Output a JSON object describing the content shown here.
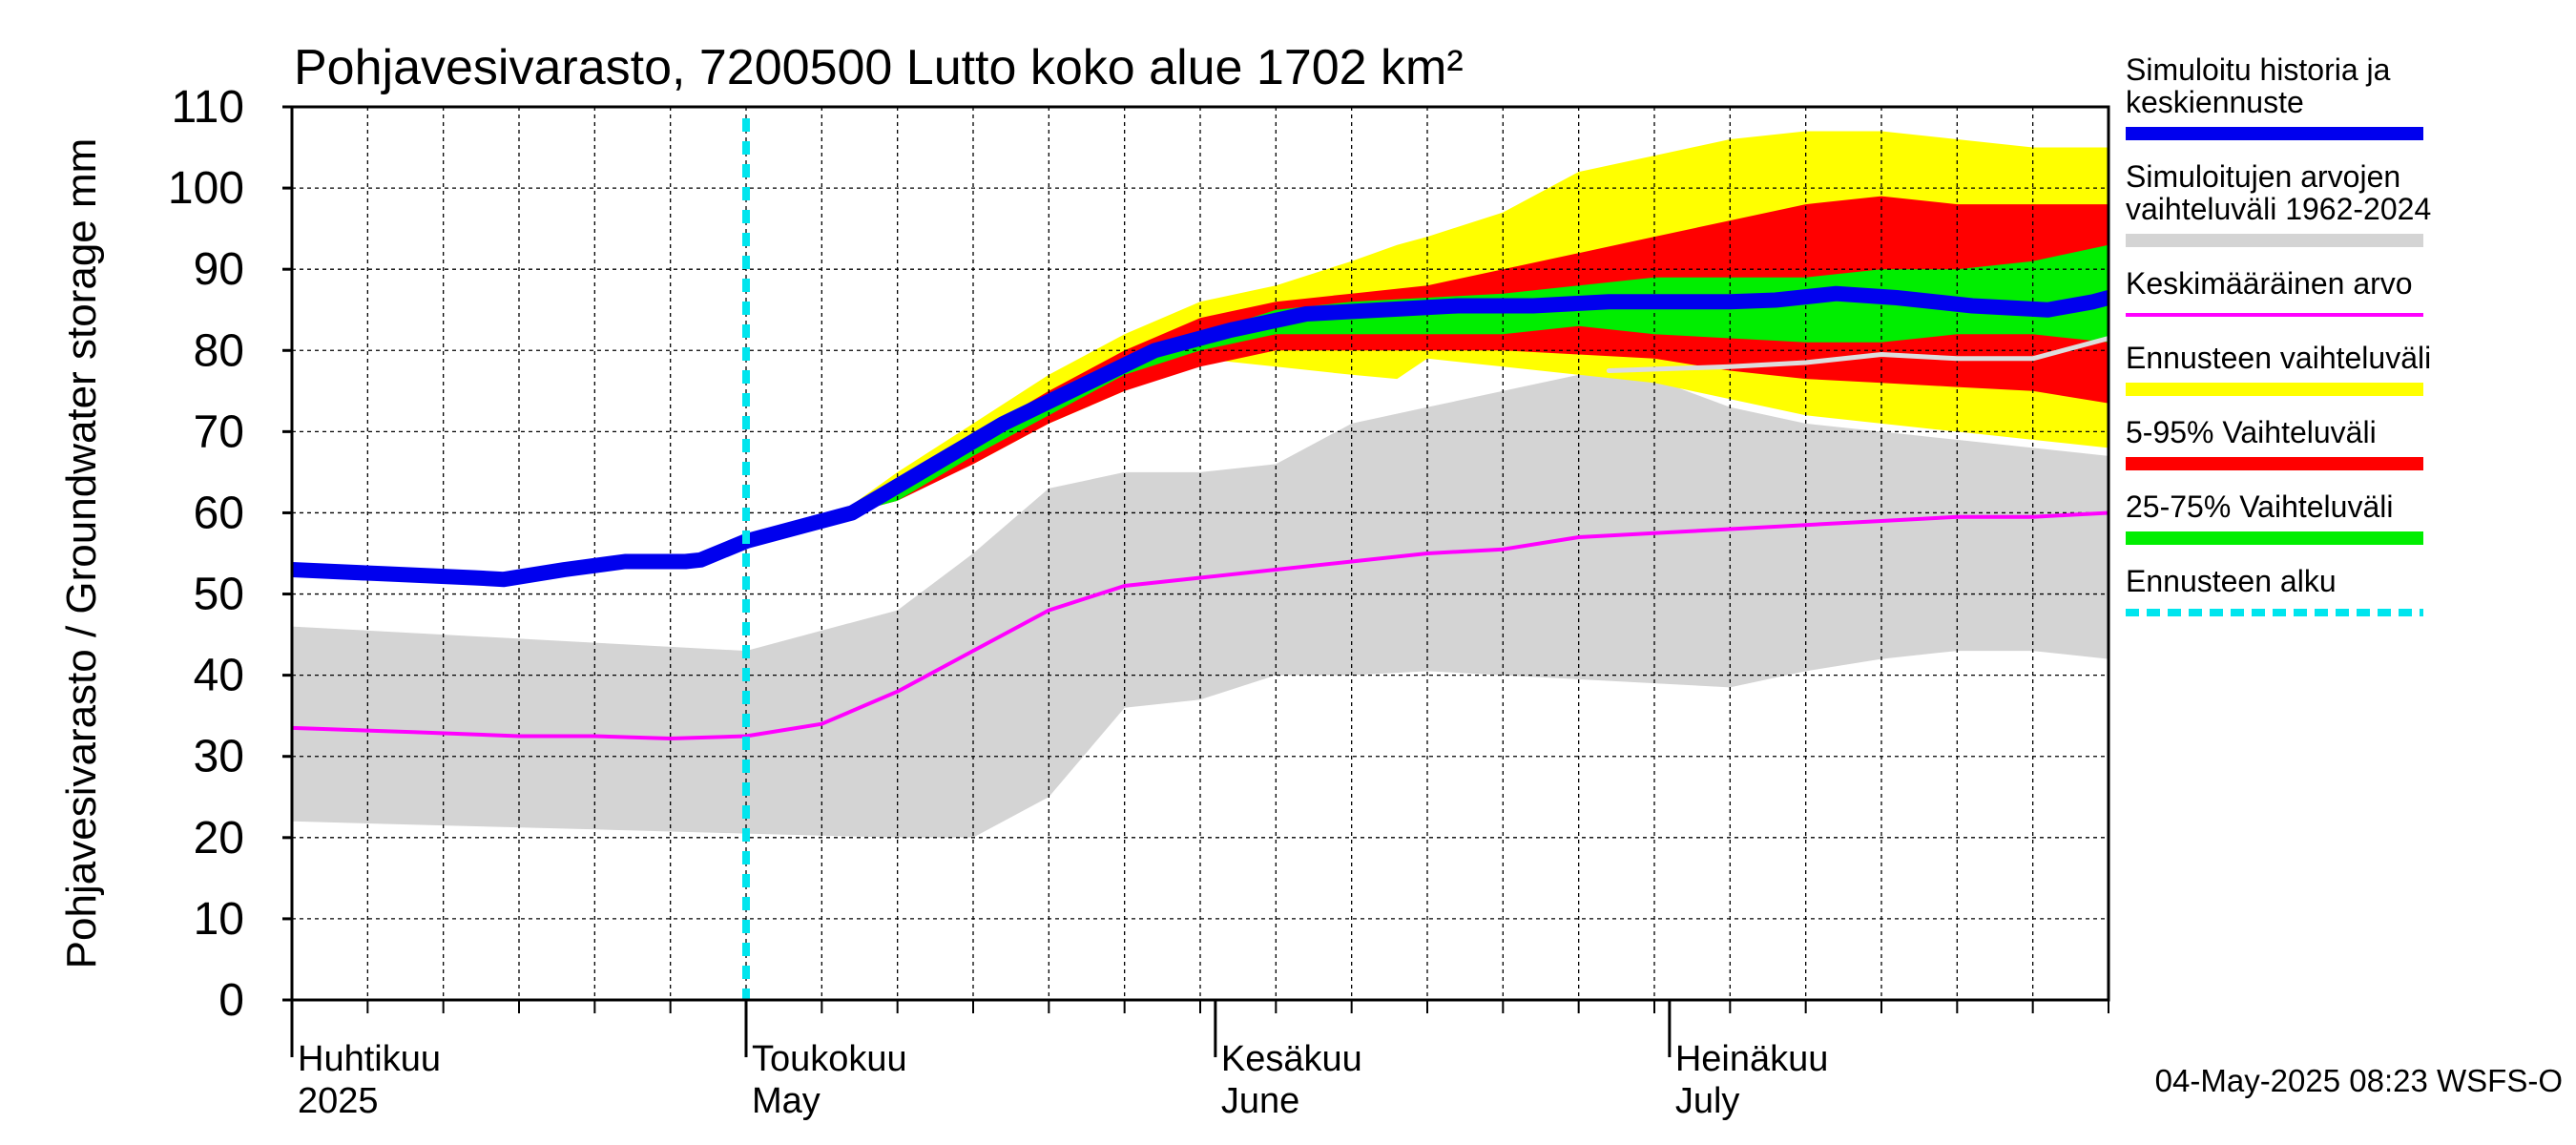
{
  "chart_data": {
    "type": "area",
    "title": "Pohjavesivarasto, 7200500 Lutto koko alue 1702 km²",
    "ylabel": "Pohjavesivarasto / Groundwater storage   mm",
    "ylim": [
      0,
      110
    ],
    "yticks": [
      0,
      10,
      20,
      30,
      40,
      50,
      60,
      70,
      80,
      90,
      100,
      110
    ],
    "x_unit": "day index from 1 April 2025",
    "xlim": [
      0,
      120
    ],
    "grid": true,
    "month_labels": [
      {
        "fi": "Huhtikuu",
        "en": "2025",
        "day": 0
      },
      {
        "fi": "Toukokuu",
        "en": "May",
        "day": 30
      },
      {
        "fi": "Kesäkuu",
        "en": "June",
        "day": 61
      },
      {
        "fi": "Heinäkuu",
        "en": "July",
        "day": 91
      }
    ],
    "forecast_start_day": 30,
    "timestamp": "04-May-2025 08:23 WSFS-O",
    "legend": [
      {
        "label_lines": [
          "Simuloitu historia ja",
          "keskiennuste"
        ],
        "color": "#0000ee",
        "style": "thick"
      },
      {
        "label_lines": [
          "Simuloitujen arvojen",
          "vaihteluväli 1962-2024"
        ],
        "color": "#d4d4d4",
        "style": "band"
      },
      {
        "label_lines": [
          "Keskimääräinen arvo"
        ],
        "color": "#ff00ff",
        "style": "line"
      },
      {
        "label_lines": [
          "Ennusteen vaihteluväli"
        ],
        "color": "#ffff00",
        "style": "band"
      },
      {
        "label_lines": [
          "5-95% Vaihteluväli"
        ],
        "color": "#ff0000",
        "style": "band"
      },
      {
        "label_lines": [
          "25-75% Vaihteluväli"
        ],
        "color": "#00ee00",
        "style": "band"
      },
      {
        "label_lines": [
          "Ennusteen alku"
        ],
        "color": "#00e5ee",
        "style": "dashed"
      }
    ],
    "series": {
      "hist_range": {
        "name": "Simuloitujen arvojen vaihteluväli 1962-2024",
        "color": "#d4d4d4",
        "x": [
          0,
          10,
          20,
          30,
          40,
          45,
          50,
          55,
          60,
          65,
          70,
          75,
          80,
          85,
          90,
          95,
          100,
          105,
          110,
          115,
          120
        ],
        "low": [
          22,
          21.5,
          21,
          20.5,
          20,
          20,
          25,
          36,
          37,
          40,
          40,
          40.5,
          40,
          39.5,
          39,
          38.5,
          40.5,
          42,
          43,
          43,
          42
        ],
        "high": [
          46,
          45,
          44,
          43,
          48,
          55,
          63,
          65,
          65,
          66,
          71,
          73,
          75,
          77,
          76.5,
          73,
          71,
          70,
          69,
          68,
          67
        ]
      },
      "forecast_range": {
        "name": "Ennusteen vaihteluväli",
        "color": "#ffff00",
        "x": [
          37,
          40,
          45,
          50,
          55,
          60,
          65,
          70,
          73,
          75,
          80,
          85,
          90,
          95,
          100,
          105,
          110,
          115,
          120
        ],
        "low": [
          60,
          62,
          66,
          71,
          75,
          79,
          78,
          77,
          76.5,
          79,
          78,
          77,
          76,
          74,
          72,
          71,
          70,
          69,
          68
        ],
        "high": [
          61,
          65,
          71,
          77,
          82,
          86,
          88,
          91,
          93,
          94,
          97,
          102,
          104,
          106,
          107,
          107,
          106,
          105,
          105
        ]
      },
      "p5_95": {
        "name": "5-95% Vaihteluväli",
        "color": "#ff0000",
        "x": [
          37,
          40,
          45,
          50,
          55,
          60,
          65,
          70,
          75,
          80,
          85,
          90,
          95,
          100,
          105,
          110,
          115,
          120
        ],
        "low": [
          60,
          61.5,
          66,
          71,
          75,
          78,
          80,
          80,
          80,
          80,
          79.5,
          79,
          77.5,
          76.5,
          76,
          75.5,
          75,
          73.5
        ],
        "high": [
          60.5,
          64,
          69.5,
          75,
          80,
          84,
          86,
          87,
          88,
          90,
          92,
          94,
          96,
          98,
          99,
          98,
          98,
          98
        ]
      },
      "p25_75": {
        "name": "25-75% Vaihteluväli",
        "color": "#00ee00",
        "x": [
          37,
          40,
          45,
          50,
          55,
          60,
          65,
          70,
          75,
          80,
          85,
          90,
          95,
          100,
          105,
          110,
          115,
          120
        ],
        "low": [
          60,
          61.5,
          67,
          72,
          77,
          80,
          82,
          82,
          82,
          82,
          83,
          82,
          81.5,
          81,
          81,
          82,
          82,
          81
        ],
        "high": [
          60.5,
          63,
          69,
          74,
          78.5,
          82,
          85,
          86,
          86.5,
          87,
          88,
          89,
          89,
          89,
          90,
          90,
          91,
          93
        ]
      },
      "history": {
        "name": "Simuloitu historia ja keskiennuste",
        "color": "#0000ee",
        "x": [
          0,
          6,
          12,
          14,
          18,
          22,
          26,
          27,
          30,
          34,
          37,
          42,
          47,
          52,
          57,
          62,
          67,
          72,
          77,
          82,
          87,
          90,
          95,
          98,
          102,
          106,
          111,
          116,
          119,
          120
        ],
        "y": [
          53,
          52.5,
          52,
          51.8,
          53,
          54,
          54,
          54.2,
          56.5,
          58.5,
          60,
          65.5,
          71,
          75.5,
          80,
          82.5,
          84.5,
          85,
          85.5,
          85.5,
          86,
          86,
          86,
          86.2,
          87,
          86.5,
          85.5,
          85,
          86,
          86.5
        ]
      },
      "average": {
        "name": "Keskimääräinen arvo",
        "color": "#ff00ff",
        "x": [
          0,
          8,
          15,
          20,
          25,
          30,
          35,
          40,
          45,
          50,
          55,
          60,
          65,
          70,
          75,
          80,
          85,
          90,
          95,
          100,
          105,
          110,
          115,
          120
        ],
        "y": [
          33.5,
          33,
          32.5,
          32.5,
          32.2,
          32.5,
          34,
          38,
          43,
          48,
          51,
          52,
          53,
          54,
          55,
          55.5,
          57,
          57.5,
          58,
          58.5,
          59,
          59.5,
          59.5,
          60
        ]
      },
      "median_hist": {
        "name": "median",
        "color": "#dddddd",
        "x": [
          87,
          95,
          100,
          105,
          110,
          115,
          120
        ],
        "y": [
          77.5,
          78,
          78.5,
          79.5,
          79,
          79,
          81.5
        ]
      }
    }
  }
}
